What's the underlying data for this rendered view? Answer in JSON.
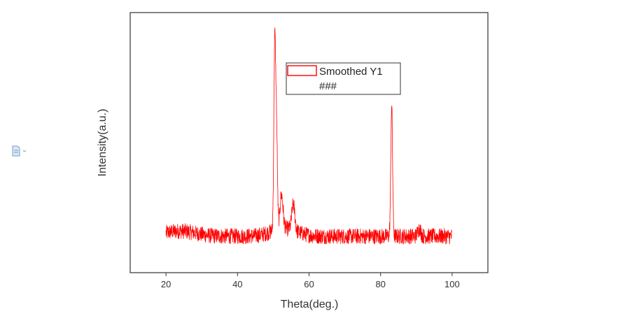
{
  "chart_data": {
    "type": "line",
    "xlabel": "Theta(deg.)",
    "ylabel": "Intensity(a.u.)",
    "xlim": [
      10,
      110
    ],
    "ylim": [
      0,
      1
    ],
    "xticks": [
      20,
      40,
      60,
      80,
      100
    ],
    "show_yticks": false,
    "grid": false,
    "legend": {
      "placement": "top-center",
      "entries": [
        "Smoothed Y1",
        "###"
      ]
    },
    "series": [
      {
        "name": "Smoothed Y1",
        "color": "#ff0000",
        "x_range": [
          20,
          100
        ],
        "baseline": 0.14,
        "noise": 0.03,
        "peaks": [
          {
            "x": 50.4,
            "height": 0.84
          },
          {
            "x": 50.9,
            "height": 0.52
          },
          {
            "x": 52.3,
            "height": 0.27
          },
          {
            "x": 55.6,
            "height": 0.24
          },
          {
            "x": 83.1,
            "height": 0.64
          },
          {
            "x": 90.8,
            "height": 0.17
          }
        ]
      }
    ]
  },
  "icons": {
    "side_icon": "document-icon"
  }
}
